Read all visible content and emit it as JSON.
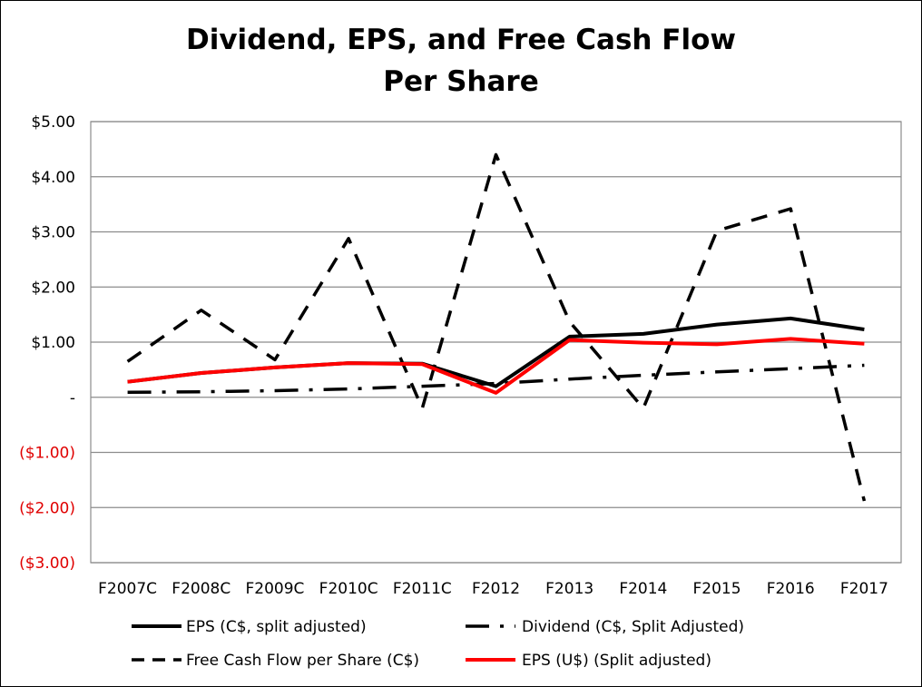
{
  "chart_data": {
    "type": "line",
    "title": "Dividend, EPS, and Free Cash Flow",
    "subtitle": "Per Share",
    "categories": [
      "F2007C",
      "F2008C",
      "F2009C",
      "F2010C",
      "F2011C",
      "F2012",
      "F2013",
      "F2014",
      "F2015",
      "F2016",
      "F2017"
    ],
    "ylim": [
      -3,
      5
    ],
    "yticks": [
      5,
      4,
      3,
      2,
      1,
      0,
      -1,
      -2,
      -3
    ],
    "ytick_labels": [
      "$5.00",
      "$4.00",
      "$3.00",
      "$2.00",
      "$1.00",
      "-",
      "($1.00)",
      "($2.00)",
      "($3.00)"
    ],
    "negative_tick_color": "#e00000",
    "grid": true,
    "legend": "bottom",
    "series": [
      {
        "name": "EPS (C$, split adjusted)",
        "color": "#000000",
        "style": "solid",
        "values": [
          0.28,
          0.44,
          0.54,
          0.62,
          0.61,
          0.2,
          1.1,
          1.15,
          1.32,
          1.43,
          1.23
        ]
      },
      {
        "name": "Dividend (C$, Split Adjusted)",
        "color": "#000000",
        "style": "dashdot",
        "values": [
          0.09,
          0.1,
          0.12,
          0.15,
          0.2,
          0.25,
          0.33,
          0.4,
          0.46,
          0.52,
          0.58
        ]
      },
      {
        "name": "Free Cash Flow per Share (C$)",
        "color": "#000000",
        "style": "dash",
        "values": [
          0.65,
          1.58,
          0.68,
          2.88,
          -0.2,
          4.4,
          1.37,
          -0.2,
          3.02,
          3.42,
          -1.88
        ]
      },
      {
        "name": "EPS (U$) (Split adjusted)",
        "color": "#ff0000",
        "style": "solid",
        "values": [
          0.28,
          0.44,
          0.54,
          0.62,
          0.6,
          0.08,
          1.04,
          0.99,
          0.96,
          1.06,
          0.97
        ]
      }
    ]
  }
}
